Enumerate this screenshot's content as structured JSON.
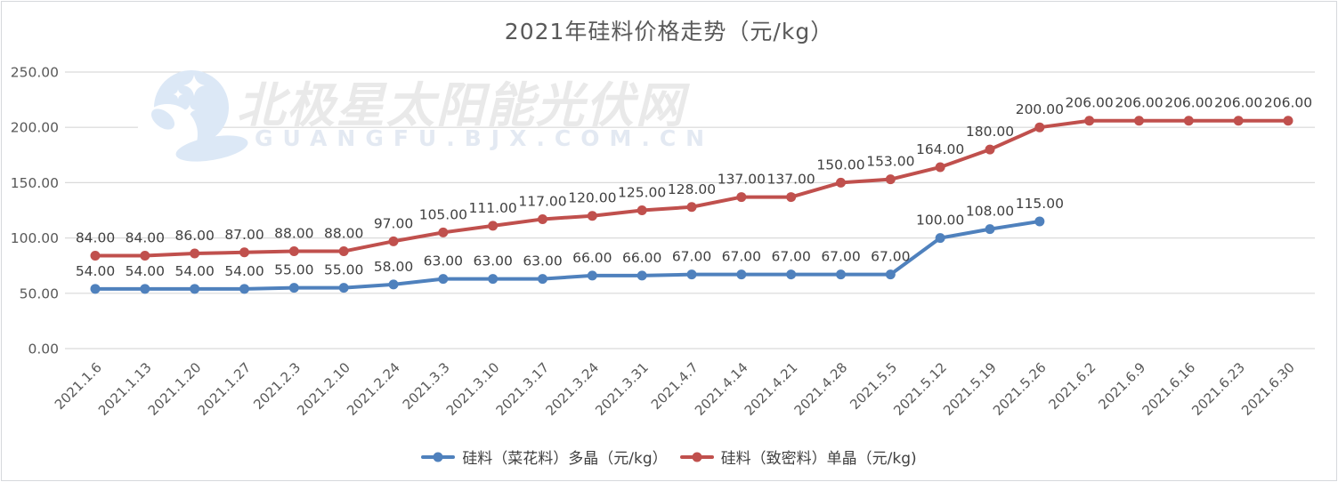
{
  "frame": {
    "background": "#FFFFFF",
    "border_color": "#D6D9DC"
  },
  "watermark": {
    "logo": "crescent-moon-stars-logo",
    "text": "北极星太阳能光伏网",
    "subtext": "GUANGFU.BJX.COM.CN",
    "logo_color": "#DCE8F6",
    "text_color": "#E9E9E9",
    "subtext_color": "#E3E9F2"
  },
  "chart_data": {
    "type": "line",
    "title": "2021年硅料价格走势（元/kg）",
    "categories": [
      "2021.1.6",
      "2021.1.13",
      "2021.1.20",
      "2021.1.27",
      "2021.2.3",
      "2021.2.10",
      "2021.2.24",
      "2021.3.3",
      "2021.3.10",
      "2021.3.17",
      "2021.3.24",
      "2021.3.31",
      "2021.4.7",
      "2021.4.14",
      "2021.4.21",
      "2021.4.28",
      "2021.5.5",
      "2021.5.12",
      "2021.5.19",
      "2021.5.26",
      "2021.6.2",
      "2021.6.9",
      "2021.6.16",
      "2021.6.23",
      "2021.6.30"
    ],
    "series": [
      {
        "name": "硅料（菜花料）多晶（元/kg）",
        "color": "#4F81BD",
        "values": [
          54,
          54,
          54,
          54,
          55,
          55,
          58,
          63,
          63,
          63,
          66,
          66,
          67,
          67,
          67,
          67,
          67,
          100,
          108,
          115,
          null,
          null,
          null,
          null,
          null
        ]
      },
      {
        "name": "硅料（致密料）单晶（元/kg)",
        "color": "#C0504D",
        "values": [
          84,
          84,
          86,
          87,
          88,
          88,
          97,
          105,
          111,
          117,
          120,
          125,
          128,
          137,
          137,
          150,
          153,
          164,
          180,
          200,
          206,
          206,
          206,
          206,
          206
        ]
      }
    ],
    "ylim": [
      0,
      250
    ],
    "ytick_step": 50,
    "yticks": [
      "0.00",
      "50.00",
      "100.00",
      "150.00",
      "200.00",
      "250.00"
    ],
    "value_label_decimals": 2,
    "grid": true,
    "legend_position": "bottom",
    "axis_text_color": "#595959",
    "data_label_color": "#404040",
    "gridline_color": "#D9D9D9"
  }
}
